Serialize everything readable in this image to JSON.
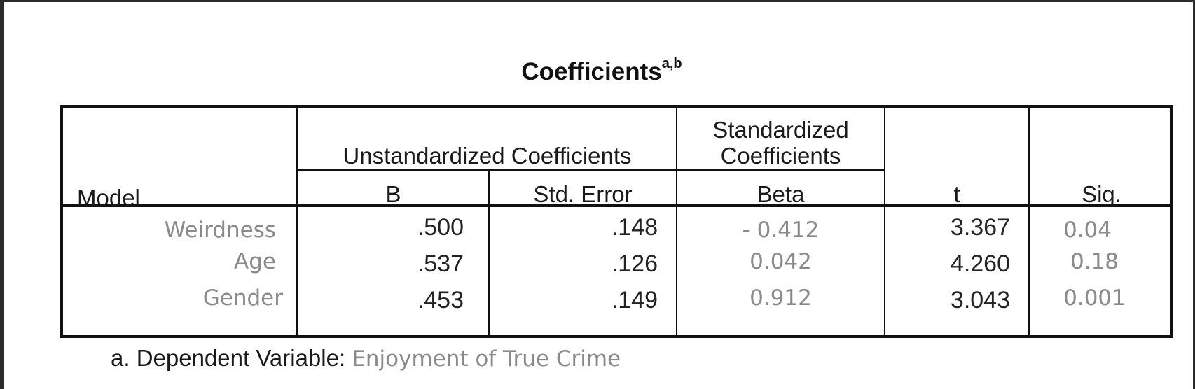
{
  "title": {
    "text": "Coefficients",
    "superscript": "a,b"
  },
  "header": {
    "model": "Model",
    "unstandardized": "Unstandardized Coefficients",
    "standardized_line1": "Standardized",
    "standardized_line2": "Coefficients",
    "b": "B",
    "std_error": "Std. Error",
    "beta": "Beta",
    "t": "t",
    "sig": "Sig."
  },
  "rows": [
    {
      "model": "Weirdness",
      "b": ".500",
      "std_error": ".148",
      "beta": "- 0.412",
      "t": "3.367",
      "sig": "0.04"
    },
    {
      "model": "Age",
      "b": ".537",
      "std_error": ".126",
      "beta": "0.042",
      "t": "4.260",
      "sig": "0.18"
    },
    {
      "model": "Gender",
      "b": ".453",
      "std_error": ".149",
      "beta": "0.912",
      "t": "3.043",
      "sig": "0.001"
    }
  ],
  "footnote": {
    "label": "a. Dependent Variable:",
    "value": "Enjoyment of True Crime"
  }
}
